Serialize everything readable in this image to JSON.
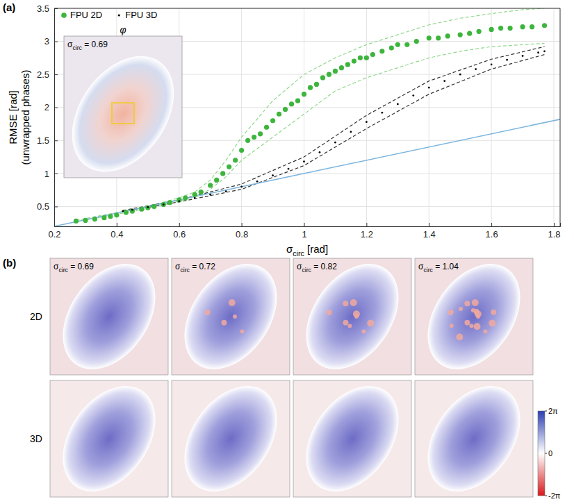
{
  "chart_data": [
    {
      "type": "scatter",
      "panel_label": "(a)",
      "xlabel": {
        "text": "σ",
        "sub": "circ",
        "after": " [rad]"
      },
      "ylabel": [
        "RMSE [rad]",
        "(unwrapped phases)"
      ],
      "xlim": [
        0.2,
        1.82
      ],
      "ylim": [
        0.2,
        3.5
      ],
      "xticks": [
        0.2,
        0.4,
        0.6,
        0.8,
        1,
        1.2,
        1.4,
        1.6,
        1.8
      ],
      "yticks": [
        0.5,
        1,
        1.5,
        2,
        2.5,
        3,
        3.5
      ],
      "grid": true,
      "legend": "upper left",
      "series": [
        {
          "name": "FPU 2D",
          "type": "scatter",
          "marker": "circle",
          "color": "#3db53d",
          "x": [
            0.27,
            0.3,
            0.33,
            0.36,
            0.38,
            0.4,
            0.43,
            0.45,
            0.48,
            0.5,
            0.52,
            0.55,
            0.57,
            0.6,
            0.62,
            0.65,
            0.67,
            0.7,
            0.72,
            0.74,
            0.76,
            0.78,
            0.8,
            0.82,
            0.84,
            0.86,
            0.88,
            0.9,
            0.92,
            0.94,
            0.96,
            0.98,
            1.0,
            1.02,
            1.04,
            1.06,
            1.08,
            1.1,
            1.12,
            1.14,
            1.16,
            1.18,
            1.2,
            1.22,
            1.25,
            1.28,
            1.3,
            1.33,
            1.36,
            1.4,
            1.43,
            1.46,
            1.5,
            1.53,
            1.56,
            1.6,
            1.63,
            1.66,
            1.7,
            1.73,
            1.77
          ],
          "values": [
            0.28,
            0.29,
            0.31,
            0.33,
            0.35,
            0.37,
            0.41,
            0.43,
            0.46,
            0.48,
            0.5,
            0.53,
            0.56,
            0.6,
            0.63,
            0.68,
            0.72,
            0.82,
            0.9,
            1.0,
            1.1,
            1.2,
            1.35,
            1.5,
            1.55,
            1.6,
            1.7,
            1.8,
            1.9,
            1.97,
            2.05,
            2.1,
            2.2,
            2.3,
            2.35,
            2.45,
            2.5,
            2.55,
            2.6,
            2.65,
            2.7,
            2.75,
            2.75,
            2.8,
            2.85,
            2.9,
            2.95,
            2.95,
            3.0,
            3.05,
            3.05,
            3.08,
            3.1,
            3.12,
            3.15,
            3.18,
            3.2,
            3.2,
            3.22,
            3.22,
            3.24
          ]
        },
        {
          "type": "line",
          "line_style": "dashed",
          "color": "#8fd88a",
          "x": [
            0.27,
            0.5,
            0.6,
            0.65,
            0.7,
            0.75,
            0.8,
            0.9,
            1.0,
            1.1,
            1.2,
            1.3,
            1.4,
            1.5,
            1.6,
            1.7,
            1.77
          ],
          "values": [
            0.29,
            0.5,
            0.63,
            0.72,
            0.9,
            1.2,
            1.55,
            2.1,
            2.5,
            2.75,
            2.95,
            3.1,
            3.25,
            3.35,
            3.42,
            3.48,
            3.5
          ]
        },
        {
          "type": "line",
          "line_style": "dashed",
          "color": "#8fd88a",
          "x": [
            0.27,
            0.5,
            0.6,
            0.65,
            0.7,
            0.75,
            0.8,
            0.9,
            1.0,
            1.1,
            1.2,
            1.3,
            1.4,
            1.5,
            1.6,
            1.7,
            1.77
          ],
          "values": [
            0.27,
            0.47,
            0.58,
            0.65,
            0.76,
            0.95,
            1.2,
            1.55,
            1.9,
            2.25,
            2.45,
            2.6,
            2.75,
            2.85,
            2.92,
            2.95,
            2.97
          ]
        },
        {
          "name": "FPU 3D",
          "type": "scatter",
          "marker": "point",
          "color": "#000000",
          "x": [
            0.42,
            0.45,
            0.5,
            0.55,
            0.6,
            0.65,
            0.7,
            0.75,
            0.8,
            0.85,
            0.9,
            0.95,
            1.0,
            1.05,
            1.1,
            1.15,
            1.2,
            1.25,
            1.3,
            1.35,
            1.4,
            1.45,
            1.5,
            1.55,
            1.6,
            1.65,
            1.7,
            1.75,
            1.77
          ],
          "values": [
            0.43,
            0.45,
            0.49,
            0.53,
            0.58,
            0.63,
            0.68,
            0.73,
            0.8,
            0.88,
            0.97,
            1.07,
            1.18,
            1.32,
            1.47,
            1.63,
            1.78,
            1.92,
            2.05,
            2.18,
            2.3,
            2.4,
            2.5,
            2.58,
            2.65,
            2.72,
            2.78,
            2.83,
            2.85
          ]
        },
        {
          "type": "line",
          "line_style": "dashed",
          "color": "#333333",
          "x": [
            0.42,
            0.6,
            0.8,
            1.0,
            1.2,
            1.4,
            1.6,
            1.77
          ],
          "values": [
            0.44,
            0.6,
            0.84,
            1.25,
            1.88,
            2.4,
            2.73,
            2.92
          ]
        },
        {
          "type": "line",
          "line_style": "dashed",
          "color": "#333333",
          "x": [
            0.42,
            0.6,
            0.8,
            1.0,
            1.2,
            1.4,
            1.6,
            1.77
          ],
          "values": [
            0.42,
            0.57,
            0.76,
            1.12,
            1.68,
            2.2,
            2.58,
            2.8
          ]
        },
        {
          "type": "line",
          "line_style": "solid",
          "color": "#7eb6de",
          "x": [
            0.2,
            1.82
          ],
          "values": [
            0.2,
            1.82
          ]
        }
      ],
      "inset": {
        "title": "φ",
        "sigma_label": {
          "text": "σ",
          "sub": "circ",
          "after": " = "
        },
        "sigma_circ": 0.69
      }
    },
    {
      "type": "image",
      "panel_label": "(b)",
      "rows": [
        "2D",
        "3D"
      ],
      "sigma_label": {
        "text": "σ",
        "sub": "circ",
        "after": " = "
      },
      "sigma_circ": [
        0.69,
        0.72,
        0.82,
        1.04
      ],
      "colorbar": {
        "range": [
          -6.283185307179586,
          6.283185307179586
        ],
        "ticks": [
          {
            "value": 6.283185307179586,
            "label": "2π"
          },
          0,
          {
            "value": -6.283185307179586,
            "label": "-2π"
          }
        ]
      }
    }
  ]
}
